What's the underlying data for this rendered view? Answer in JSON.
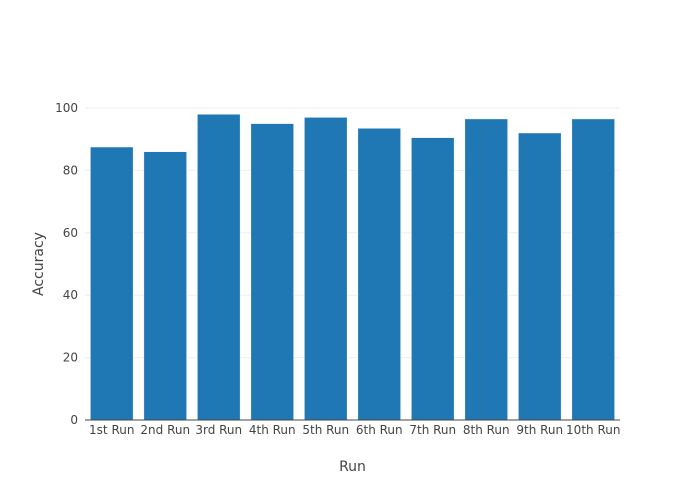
{
  "chart_data": {
    "type": "bar",
    "categories": [
      "1st Run",
      "2nd Run",
      "3rd Run",
      "4th Run",
      "5th Run",
      "6th Run",
      "7th Run",
      "8th Run",
      "9th Run",
      "10th Run"
    ],
    "values": [
      87.5,
      86.0,
      98.0,
      95.0,
      97.0,
      93.5,
      90.5,
      96.5,
      92.0,
      96.5
    ],
    "xlabel": "Run",
    "ylabel": "Accuracy",
    "ylim": [
      0,
      100
    ],
    "yticks": [
      0,
      20,
      40,
      60,
      80,
      100
    ],
    "grid": true,
    "bar_color": "#1f77b4"
  }
}
